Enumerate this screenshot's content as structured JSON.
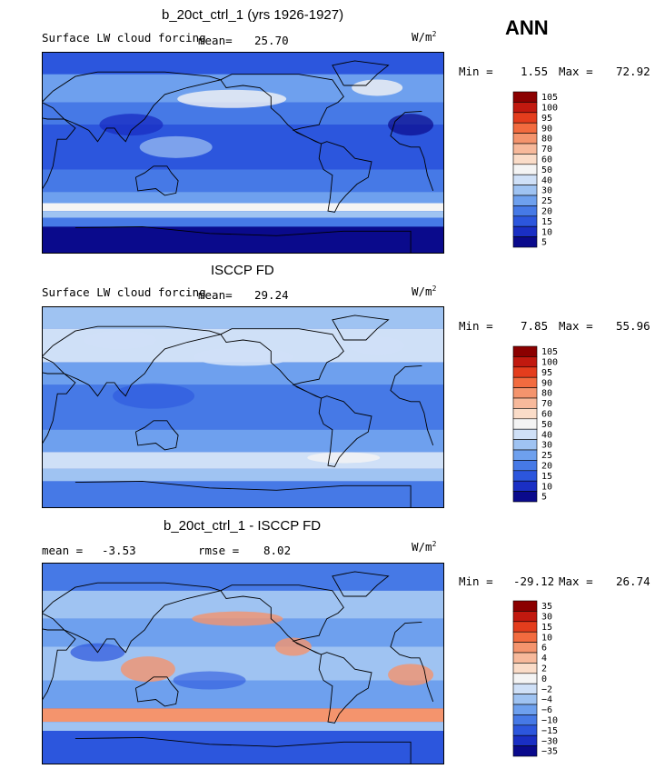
{
  "season": "ANN",
  "panels": [
    {
      "title": "b_20ct_ctrl_1 (yrs 1926-1927)",
      "variable": "Surface LW cloud forcing",
      "mean_label": "mean=",
      "mean_value": "25.70",
      "units": "W/m",
      "units_exp": "2",
      "min_label": "Min =",
      "min_value": "1.55",
      "max_label": "Max =",
      "max_value": "72.92",
      "levels": [
        "105",
        "100",
        "95",
        "90",
        "80",
        "70",
        "60",
        "50",
        "40",
        "30",
        "25",
        "20",
        "15",
        "10",
        "5"
      ],
      "palette": "abs"
    },
    {
      "title": "ISCCP FD",
      "variable": "Surface LW cloud forcing",
      "mean_label": "mean=",
      "mean_value": "29.24",
      "units": "W/m",
      "units_exp": "2",
      "min_label": "Min =",
      "min_value": "7.85",
      "max_label": "Max =",
      "max_value": "55.96",
      "levels": [
        "105",
        "100",
        "95",
        "90",
        "80",
        "70",
        "60",
        "50",
        "40",
        "30",
        "25",
        "20",
        "15",
        "10",
        "5"
      ],
      "palette": "abs"
    },
    {
      "title": "b_20ct_ctrl_1 - ISCCP FD",
      "mean_label": "mean =",
      "mean_value": "-3.53",
      "rmse_label": "rmse =",
      "rmse_value": "8.02",
      "units": "W/m",
      "units_exp": "2",
      "min_label": "Min =",
      "min_value": "-29.12",
      "max_label": "Max =",
      "max_value": "26.74",
      "levels": [
        "35",
        "30",
        "15",
        "10",
        "6",
        "4",
        "2",
        "0",
        "−2",
        "−4",
        "−6",
        "−10",
        "−15",
        "−30",
        "−35"
      ],
      "palette": "diff"
    }
  ],
  "colors": {
    "palette_abs": [
      "#8b0000",
      "#c1190f",
      "#e43d1d",
      "#f26b3f",
      "#f4946d",
      "#f7b99b",
      "#fadcc8",
      "#f4f4f4",
      "#cfe0f7",
      "#9fc3f2",
      "#6ea0ee",
      "#4679e6",
      "#2c56dd",
      "#1a2fc4",
      "#0a0a8c"
    ],
    "palette_diff": [
      "#8b0000",
      "#c1190f",
      "#e43d1d",
      "#f26b3f",
      "#f4946d",
      "#f7b99b",
      "#fadcc8",
      "#f4f4f4",
      "#cfe0f7",
      "#9fc3f2",
      "#6ea0ee",
      "#4679e6",
      "#2c56dd",
      "#1a2fc4",
      "#0a0a8c"
    ],
    "ocean_background": "#1f4fd6",
    "coastline": "#000000"
  },
  "chart_data": [
    {
      "type": "heatmap",
      "title": "b_20ct_ctrl_1 (yrs 1926-1927)",
      "subtitle": "Surface LW cloud forcing",
      "mean": 25.7,
      "min": 1.55,
      "max": 72.92,
      "contour_levels": [
        5,
        10,
        15,
        20,
        25,
        30,
        40,
        50,
        60,
        70,
        80,
        90,
        95,
        100,
        105
      ],
      "units": "W/m2"
    },
    {
      "type": "heatmap",
      "title": "ISCCP FD",
      "subtitle": "Surface LW cloud forcing",
      "mean": 29.24,
      "min": 7.85,
      "max": 55.96,
      "contour_levels": [
        5,
        10,
        15,
        20,
        25,
        30,
        40,
        50,
        60,
        70,
        80,
        90,
        95,
        100,
        105
      ],
      "units": "W/m2"
    },
    {
      "type": "heatmap",
      "title": "b_20ct_ctrl_1 - ISCCP FD",
      "mean": -3.53,
      "rmse": 8.02,
      "min": -29.12,
      "max": 26.74,
      "contour_levels": [
        -35,
        -30,
        -15,
        -10,
        -6,
        -4,
        -2,
        0,
        2,
        4,
        6,
        10,
        15,
        30,
        35
      ],
      "units": "W/m2"
    }
  ]
}
